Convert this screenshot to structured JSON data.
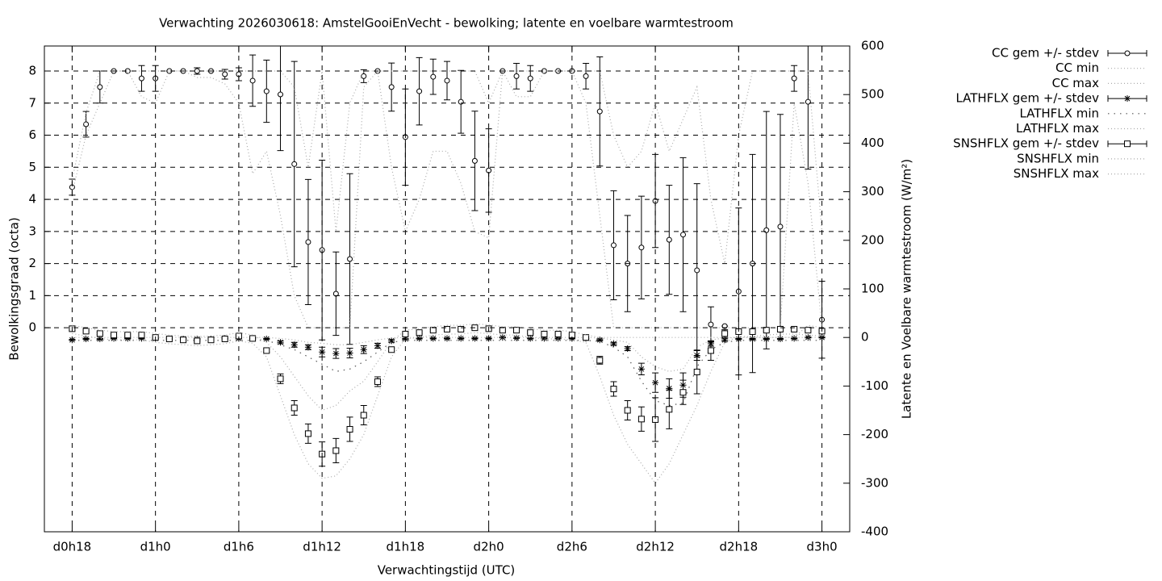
{
  "chart_data": {
    "type": "errorbar",
    "title": "Verwachting 2026030618: AmstelGooiEnVecht - bewolking; latente en voelbare warmtestroom",
    "x_label": "Verwachtingstijd (UTC)",
    "y_label": "Bewolkingsgraad (octa)",
    "y2_label": "Latente en Voelbare warmtestroom (W/m²)",
    "x": [
      18,
      19,
      20,
      21,
      22,
      23,
      24,
      25,
      26,
      27,
      28,
      29,
      30,
      31,
      32,
      33,
      34,
      35,
      36,
      37,
      38,
      39,
      40,
      41,
      42,
      43,
      44,
      45,
      46,
      47,
      48,
      49,
      50,
      51,
      52,
      53,
      54,
      55,
      56,
      57,
      58,
      59,
      60,
      61,
      62,
      63,
      64,
      65,
      66,
      67,
      68,
      69,
      70,
      71,
      72
    ],
    "xlim": [
      16,
      74
    ],
    "xticks": [
      {
        "value": 18,
        "label": "d0h18"
      },
      {
        "value": 24,
        "label": "d1h0"
      },
      {
        "value": 30,
        "label": "d1h6"
      },
      {
        "value": 36,
        "label": "d1h12"
      },
      {
        "value": 42,
        "label": "d1h18"
      },
      {
        "value": 48,
        "label": "d2h0"
      },
      {
        "value": 54,
        "label": "d2h6"
      },
      {
        "value": 60,
        "label": "d2h12"
      },
      {
        "value": 66,
        "label": "d2h18"
      },
      {
        "value": 72,
        "label": "d3h0"
      }
    ],
    "ylim": [
      -6.36,
      8.78
    ],
    "yticks": [
      0,
      1,
      2,
      3,
      4,
      5,
      6,
      7,
      8
    ],
    "y2lim": [
      -400,
      600
    ],
    "y2ticks": [
      -400,
      -300,
      -200,
      -100,
      0,
      100,
      200,
      300,
      400,
      500,
      600
    ],
    "grid": true,
    "legend": "right",
    "series": [
      {
        "name": "CC gem +/- stdev",
        "color": "#000000",
        "style": "errorbar",
        "point": "circle",
        "values": [
          4.38,
          6.34,
          7.5,
          8,
          8,
          7.77,
          7.77,
          8,
          8,
          8,
          8,
          7.9,
          7.9,
          7.7,
          7.37,
          7.27,
          5.1,
          2.67,
          2.42,
          1.06,
          2.14,
          7.84,
          8,
          7.5,
          5.94,
          7.37,
          7.82,
          7.7,
          7.04,
          5.2,
          4.9,
          8,
          7.84,
          7.77,
          8,
          8,
          8,
          7.84,
          6.74,
          2.57,
          2.0,
          2.5,
          3.95,
          2.74,
          2.9,
          1.79,
          0.1,
          0.05,
          1.13,
          2.0,
          3.04,
          3.15,
          7.77,
          7.04,
          0.25
        ],
        "errors": [
          0.25,
          0.4,
          0.5,
          0,
          0,
          0.4,
          0.4,
          0,
          0,
          0.1,
          0,
          0.15,
          0.2,
          0.8,
          0.97,
          1.75,
          3.2,
          1.95,
          2.8,
          1.3,
          2.66,
          0.2,
          0,
          0.75,
          1.5,
          1.05,
          0.55,
          0.6,
          0.98,
          1.55,
          1.3,
          0,
          0.4,
          0.4,
          0,
          0,
          0,
          0.4,
          1.7,
          1.7,
          1.5,
          1.6,
          1.45,
          1.7,
          2.4,
          2.7,
          0.55,
          0,
          2.6,
          3.4,
          3.7,
          3.5,
          0.4,
          2.1,
          1.2
        ]
      },
      {
        "name": "CC min",
        "color": "#aaaaaa",
        "style": "dotted",
        "values": [
          4.2,
          6.0,
          7.0,
          8,
          8,
          7.2,
          7.0,
          8,
          8,
          7.8,
          7.8,
          7.6,
          7.0,
          4.8,
          5.5,
          3.5,
          1.0,
          0,
          0,
          0,
          0,
          7.5,
          8,
          5,
          3,
          4,
          5.5,
          5.5,
          4.5,
          3.0,
          2.8,
          8,
          7.2,
          7.2,
          8,
          8,
          8,
          7,
          3.5,
          0,
          0,
          0,
          0,
          0,
          0,
          0,
          0,
          0,
          0,
          0,
          0,
          0,
          7,
          4.5,
          0
        ]
      },
      {
        "name": "CC max",
        "color": "#aaaaaa",
        "style": "dotted",
        "values": [
          4.6,
          6.7,
          8,
          8,
          8,
          8,
          8,
          8,
          8,
          8,
          8,
          8,
          8,
          8,
          8,
          8,
          7.5,
          5,
          8,
          3,
          7,
          8,
          8,
          8,
          8,
          8,
          8,
          8,
          8,
          8,
          7,
          8,
          8,
          8,
          8,
          8,
          8,
          8,
          8,
          6,
          5,
          5.5,
          7,
          5.5,
          6.5,
          7.5,
          4,
          2,
          6,
          8,
          8,
          8,
          8,
          8,
          3
        ]
      },
      {
        "name": "LATHFLX gem +/- stdev",
        "color": "#000000",
        "style": "errorbar",
        "point": "star",
        "axis": "y2",
        "values": [
          -5,
          -3,
          -3,
          -2,
          -2,
          -2,
          -2,
          -3,
          -3,
          -3,
          -3,
          -2,
          -2,
          -2,
          -3,
          -10,
          -15,
          -20,
          -30,
          -33,
          -32,
          -25,
          -17,
          -7,
          -3,
          -2,
          -2,
          -2,
          -2,
          -2,
          -2,
          0,
          -1,
          -2,
          -2,
          -2,
          -2,
          -2,
          -5,
          -13,
          -23,
          -65,
          -93,
          -105,
          -98,
          -37,
          -13,
          -5,
          -3,
          -3,
          -3,
          -3,
          -2,
          0,
          0
        ],
        "errors": [
          1,
          1,
          1,
          1,
          1,
          1,
          1,
          1,
          1,
          1,
          1,
          1,
          1,
          1,
          1,
          3,
          5,
          5,
          10,
          10,
          10,
          8,
          5,
          3,
          1,
          1,
          1,
          1,
          1,
          1,
          1,
          1,
          1,
          1,
          1,
          1,
          1,
          1,
          2,
          3,
          4,
          12,
          20,
          20,
          25,
          10,
          5,
          3,
          1,
          1,
          1,
          1,
          1,
          1,
          1
        ]
      },
      {
        "name": "LATHFLX min",
        "color": "#555555",
        "style": "dotted",
        "axis": "y2",
        "values": [
          -6,
          -6,
          -6,
          -6,
          -6,
          -6,
          -6,
          -6,
          -6,
          -6,
          -6,
          -6,
          -6,
          -6,
          -6,
          -15,
          -25,
          -40,
          -55,
          -70,
          -65,
          -50,
          -30,
          -10,
          -6,
          -6,
          -6,
          -6,
          -6,
          -6,
          -6,
          -6,
          -6,
          -6,
          -6,
          -6,
          -6,
          -6,
          -8,
          -20,
          -40,
          -90,
          -130,
          -140,
          -135,
          -60,
          -25,
          -10,
          -6,
          -6,
          -6,
          -6,
          -6,
          -6,
          -6
        ]
      },
      {
        "name": "LATHFLX max",
        "color": "#aaaaaa",
        "style": "dotted",
        "axis": "y2",
        "values": [
          0,
          0,
          0,
          0,
          0,
          0,
          0,
          0,
          0,
          0,
          0,
          0,
          0,
          0,
          0,
          -2,
          -5,
          -10,
          -12,
          -15,
          -15,
          -10,
          -5,
          -1,
          0,
          0,
          0,
          0,
          0,
          0,
          0,
          0,
          0,
          0,
          0,
          0,
          0,
          0,
          -1,
          -5,
          -10,
          -40,
          -60,
          -70,
          -65,
          -20,
          -5,
          -1,
          0,
          0,
          0,
          0,
          0,
          0,
          0
        ]
      },
      {
        "name": "SNSHFLX gem +/- stdev",
        "color": "#000000",
        "style": "errorbar",
        "point": "square",
        "axis": "y2",
        "values": [
          18,
          13,
          8,
          5,
          5,
          5,
          0,
          -3,
          -5,
          -7,
          -5,
          -3,
          3,
          -2,
          -27,
          -85,
          -145,
          -198,
          -240,
          -233,
          -189,
          -160,
          -91,
          -25,
          7,
          10,
          15,
          17,
          17,
          20,
          18,
          15,
          15,
          10,
          7,
          7,
          5,
          0,
          -47,
          -106,
          -150,
          -168,
          -169,
          -148,
          -113,
          -71,
          -27,
          8,
          12,
          12,
          15,
          17,
          17,
          15,
          13
        ],
        "errors": [
          3,
          2,
          2,
          2,
          2,
          2,
          2,
          2,
          2,
          2,
          2,
          2,
          2,
          2,
          3,
          10,
          15,
          20,
          25,
          25,
          25,
          20,
          10,
          3,
          2,
          2,
          2,
          2,
          2,
          2,
          2,
          2,
          2,
          2,
          2,
          2,
          2,
          2,
          8,
          15,
          20,
          25,
          45,
          40,
          25,
          45,
          20,
          8,
          2,
          2,
          2,
          2,
          2,
          2,
          2
        ]
      },
      {
        "name": "SNSHFLX min",
        "color": "#aaaaaa",
        "style": "dotted",
        "axis": "y2",
        "values": [
          8,
          3,
          -2,
          -5,
          -5,
          -5,
          -10,
          -13,
          -15,
          -17,
          -15,
          -13,
          -7,
          -12,
          -40,
          -120,
          -200,
          -260,
          -290,
          -285,
          -250,
          -200,
          -120,
          -40,
          -3,
          0,
          5,
          7,
          7,
          10,
          8,
          5,
          5,
          0,
          -3,
          -3,
          -5,
          -10,
          -80,
          -160,
          -220,
          -260,
          -300,
          -260,
          -200,
          -140,
          -70,
          -10,
          2,
          2,
          5,
          7,
          7,
          5,
          3
        ]
      },
      {
        "name": "SNSHFLX max",
        "color": "#aaaaaa",
        "style": "dotted",
        "axis": "y2",
        "values": [
          25,
          20,
          15,
          12,
          12,
          12,
          8,
          5,
          3,
          2,
          3,
          5,
          10,
          5,
          -10,
          -40,
          -80,
          -120,
          -150,
          -140,
          -110,
          -90,
          -50,
          -8,
          15,
          18,
          22,
          25,
          25,
          28,
          26,
          22,
          22,
          18,
          15,
          15,
          12,
          5,
          0,
          0,
          0,
          0,
          0,
          0,
          0,
          0,
          0,
          0,
          0,
          0,
          0,
          0,
          0,
          25,
          20
        ]
      }
    ]
  }
}
